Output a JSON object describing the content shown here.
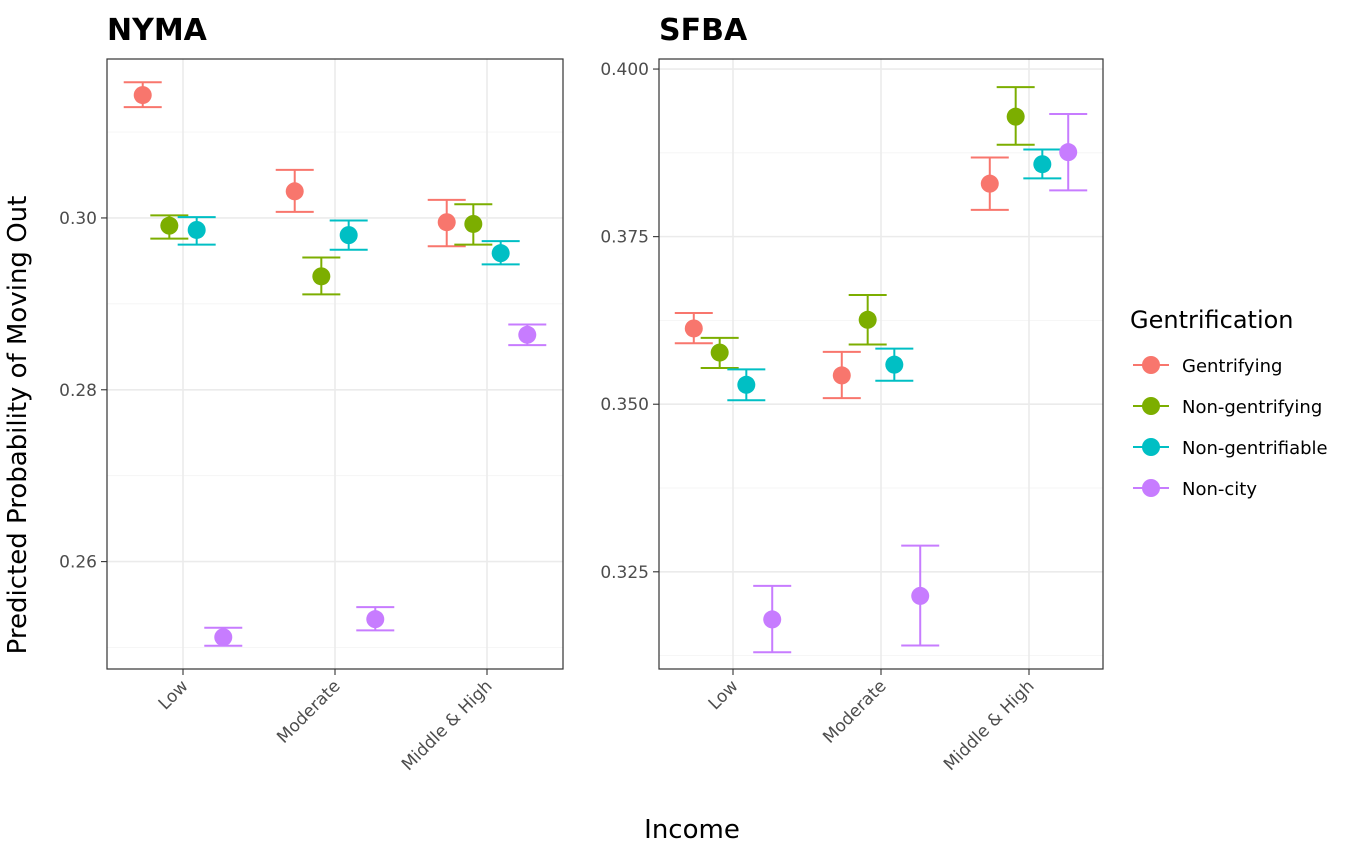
{
  "chart_data": {
    "type": "scatter",
    "x_label": "Income",
    "y_label": "Predicted Probability of Moving Out",
    "legend": {
      "title": "Gentrification",
      "placement": "right",
      "items": [
        {
          "name": "Gentrifying",
          "color": "#F8766D"
        },
        {
          "name": "Non-gentrifying",
          "color": "#7CAE00"
        },
        {
          "name": "Non-gentrifiable",
          "color": "#00BFC4"
        },
        {
          "name": "Non-city",
          "color": "#C77CFF"
        }
      ]
    },
    "categories": [
      "Low",
      "Moderate",
      "Middle & High"
    ],
    "grid": true,
    "panels": [
      {
        "title": "NYMA",
        "ylim": [
          0.2475,
          0.3185
        ],
        "yticks": [
          0.26,
          0.28,
          0.3
        ],
        "ytick_labels": [
          "0.26",
          "0.28",
          "0.30"
        ],
        "series": [
          {
            "name": "Gentrifying",
            "points": [
              {
                "y": 0.3143,
                "lo": 0.3129,
                "hi": 0.3158
              },
              {
                "y": 0.3031,
                "lo": 0.3007,
                "hi": 0.3056
              },
              {
                "y": 0.2995,
                "lo": 0.2967,
                "hi": 0.3021
              }
            ]
          },
          {
            "name": "Non-gentrifying",
            "points": [
              {
                "y": 0.2991,
                "lo": 0.2976,
                "hi": 0.3003
              },
              {
                "y": 0.2932,
                "lo": 0.2911,
                "hi": 0.2954
              },
              {
                "y": 0.2993,
                "lo": 0.2969,
                "hi": 0.3016
              }
            ]
          },
          {
            "name": "Non-gentrifiable",
            "points": [
              {
                "y": 0.2986,
                "lo": 0.2969,
                "hi": 0.3001
              },
              {
                "y": 0.298,
                "lo": 0.2963,
                "hi": 0.2997
              },
              {
                "y": 0.2959,
                "lo": 0.2946,
                "hi": 0.2973
              }
            ]
          },
          {
            "name": "Non-city",
            "points": [
              {
                "y": 0.2512,
                "lo": 0.2502,
                "hi": 0.2523
              },
              {
                "y": 0.2533,
                "lo": 0.252,
                "hi": 0.2547
              },
              {
                "y": 0.2864,
                "lo": 0.2852,
                "hi": 0.2876
              }
            ]
          }
        ]
      },
      {
        "title": "SFBA",
        "ylim": [
          0.3105,
          0.4015
        ],
        "yticks": [
          0.325,
          0.35,
          0.375,
          0.4
        ],
        "ytick_labels": [
          "0.325",
          "0.350",
          "0.375",
          "0.400"
        ],
        "series": [
          {
            "name": "Gentrifying",
            "points": [
              {
                "y": 0.3613,
                "lo": 0.3591,
                "hi": 0.3636
              },
              {
                "y": 0.3543,
                "lo": 0.3509,
                "hi": 0.3578
              },
              {
                "y": 0.3829,
                "lo": 0.379,
                "hi": 0.3868
              }
            ]
          },
          {
            "name": "Non-gentrifying",
            "points": [
              {
                "y": 0.3577,
                "lo": 0.3554,
                "hi": 0.3599
              },
              {
                "y": 0.3626,
                "lo": 0.3589,
                "hi": 0.3663
              },
              {
                "y": 0.3929,
                "lo": 0.3887,
                "hi": 0.3973
              }
            ]
          },
          {
            "name": "Non-gentrifiable",
            "points": [
              {
                "y": 0.3529,
                "lo": 0.3506,
                "hi": 0.3552
              },
              {
                "y": 0.3559,
                "lo": 0.3535,
                "hi": 0.3583
              },
              {
                "y": 0.3858,
                "lo": 0.3837,
                "hi": 0.388
              }
            ]
          },
          {
            "name": "Non-city",
            "points": [
              {
                "y": 0.3179,
                "lo": 0.313,
                "hi": 0.3229
              },
              {
                "y": 0.3214,
                "lo": 0.314,
                "hi": 0.3289
              },
              {
                "y": 0.3876,
                "lo": 0.3819,
                "hi": 0.3933
              }
            ]
          }
        ]
      }
    ]
  }
}
